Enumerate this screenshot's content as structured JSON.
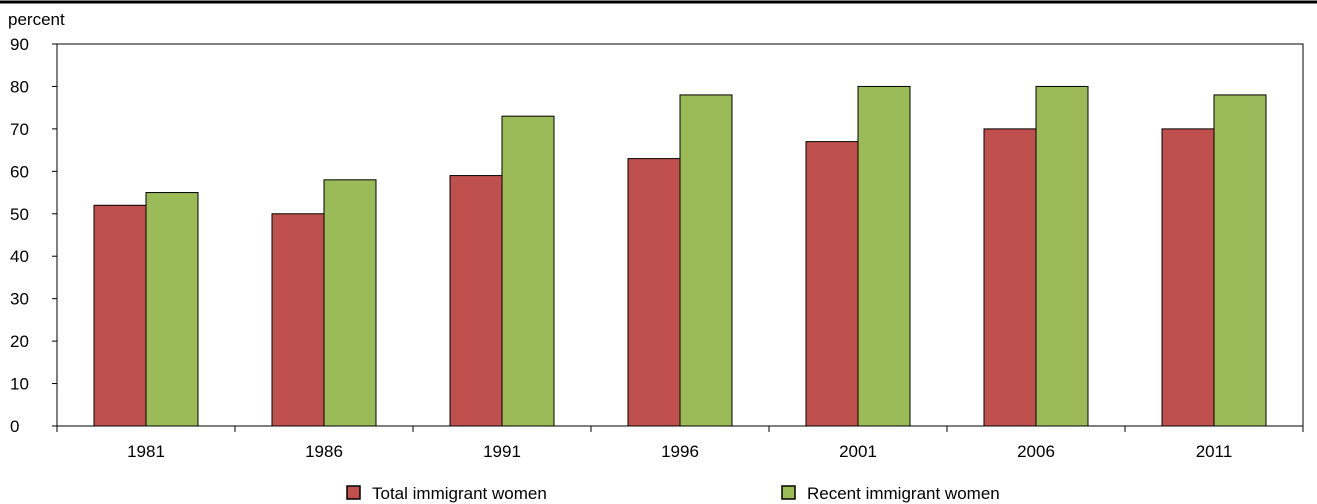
{
  "chart_data": {
    "type": "bar",
    "ylabel": "percent",
    "ylim": [
      0,
      90
    ],
    "yticks": [
      0,
      10,
      20,
      30,
      40,
      50,
      60,
      70,
      80,
      90
    ],
    "grid": false,
    "legend_position": "bottom",
    "categories": [
      "1981",
      "1986",
      "1991",
      "1996",
      "2001",
      "2006",
      "2011"
    ],
    "series": [
      {
        "name": "Total immigrant women",
        "color": "#c0504d",
        "values": [
          52,
          50,
          59,
          63,
          67,
          70,
          70
        ]
      },
      {
        "name": "Recent immigrant women",
        "color": "#9bbb59",
        "values": [
          55,
          58,
          73,
          78,
          80,
          80,
          78
        ]
      }
    ]
  }
}
